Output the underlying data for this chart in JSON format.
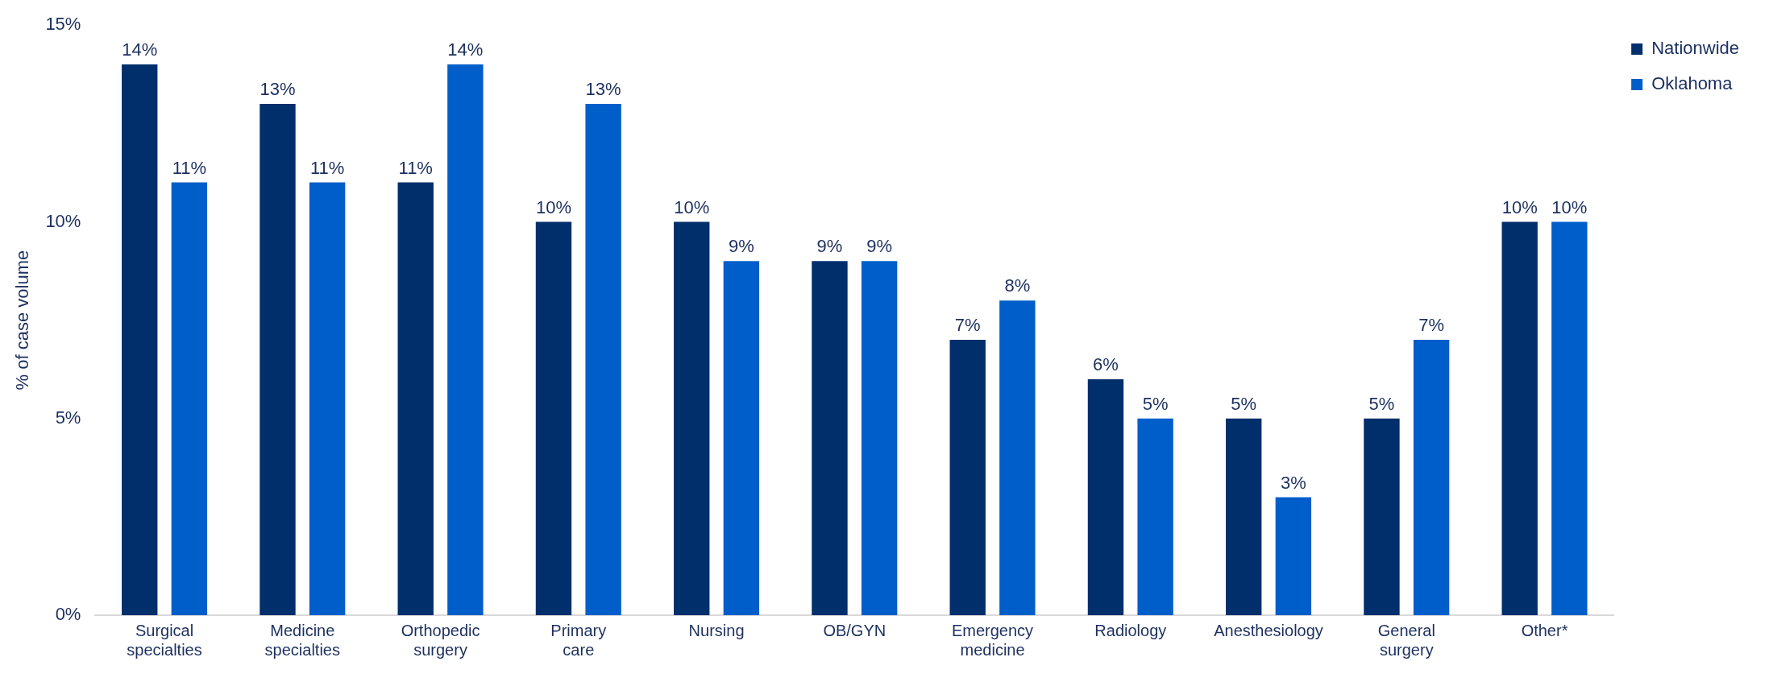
{
  "chart_data": {
    "type": "bar",
    "ylabel": "% of case volume",
    "categories": [
      "Surgical specialties",
      "Medicine specialties",
      "Orthopedic surgery",
      "Primary care",
      "Nursing",
      "OB/GYN",
      "Emergency medicine",
      "Radiology",
      "Anesthesiology",
      "General surgery",
      "Other*"
    ],
    "series": [
      {
        "name": "Nationwide",
        "color": "#002f6c",
        "values": [
          14,
          13,
          11,
          10,
          10,
          9,
          7,
          6,
          5,
          5,
          10
        ],
        "value_labels": [
          "14%",
          "13%",
          "11%",
          "10%",
          "10%",
          "9%",
          "7%",
          "6%",
          "5%",
          "5%",
          "10%"
        ]
      },
      {
        "name": "Oklahoma",
        "color": "#005eca",
        "values": [
          11,
          11,
          14,
          13,
          9,
          9,
          8,
          5,
          3,
          7,
          10
        ],
        "value_labels": [
          "11%",
          "11%",
          "14%",
          "13%",
          "9%",
          "9%",
          "8%",
          "5%",
          "3%",
          "7%",
          "10%"
        ]
      }
    ],
    "ylim": [
      0,
      15
    ],
    "yticks": [
      {
        "value": 0,
        "label": "0%"
      },
      {
        "value": 5,
        "label": "5%"
      },
      {
        "value": 10,
        "label": "10%"
      },
      {
        "value": 15,
        "label": "15%"
      }
    ],
    "grid": false,
    "legend": "top right"
  }
}
